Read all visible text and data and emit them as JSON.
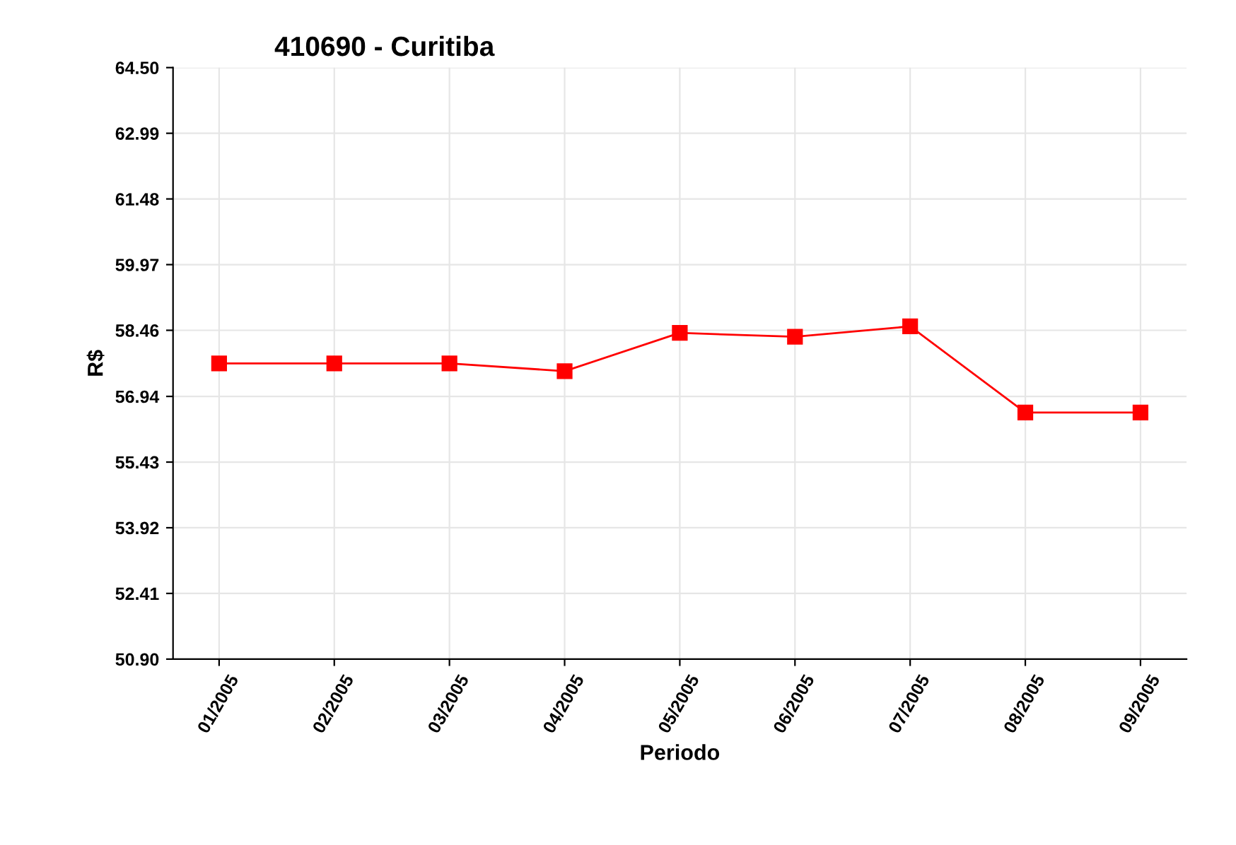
{
  "chart_data": {
    "type": "line",
    "title": "410690 - Curitiba",
    "xlabel": "Periodo",
    "ylabel": "R$",
    "categories": [
      "01/2005",
      "02/2005",
      "03/2005",
      "04/2005",
      "05/2005",
      "06/2005",
      "07/2005",
      "08/2005",
      "09/2005"
    ],
    "series": [
      {
        "color": "#ff0000",
        "values": [
          57.7,
          57.7,
          57.7,
          57.52,
          58.4,
          58.31,
          58.55,
          56.57,
          56.57
        ]
      }
    ],
    "ylim": [
      50.9,
      64.5
    ],
    "yticks": [
      {
        "value": 50.9,
        "label": "50.90"
      },
      {
        "value": 52.41,
        "label": "52.41"
      },
      {
        "value": 53.92,
        "label": "53.92"
      },
      {
        "value": 55.43,
        "label": "55.43"
      },
      {
        "value": 56.94,
        "label": "56.94"
      },
      {
        "value": 58.46,
        "label": "58.46"
      },
      {
        "value": 59.97,
        "label": "59.97"
      },
      {
        "value": 61.48,
        "label": "61.48"
      },
      {
        "value": 62.99,
        "label": "62.99"
      },
      {
        "value": 64.5,
        "label": "64.50"
      }
    ],
    "grid": true,
    "marker": "square",
    "line_style": "solid",
    "legend": false
  }
}
